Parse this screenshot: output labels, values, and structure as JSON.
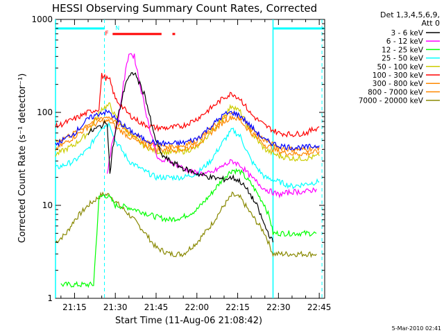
{
  "chart_data": {
    "type": "line",
    "title": "HESSI Observing Summary Count Rates, Corrected",
    "xlabel": "Start Time (11-Aug-06 21:08:42)",
    "ylabel": "Corrected Count Rate (s⁻¹ detector⁻¹)",
    "y_scale": "log",
    "ylim": [
      1,
      1000
    ],
    "xlim": [
      "21:08",
      "22:47"
    ],
    "x_tick_labels": [
      "21:15",
      "21:30",
      "21:45",
      "22:00",
      "22:15",
      "22:30",
      "22:45"
    ],
    "y_tick_labels": [
      "1",
      "10",
      "100",
      "1000"
    ],
    "legend_position": "right",
    "legend_header": [
      "Det 1,3,4,5,6,9,",
      "Att 0"
    ],
    "footer": "5-Mar-2010 02:41",
    "series": [
      {
        "name": "3 - 6 keV",
        "color": "#000000",
        "x": [
          "21:20",
          "21:26",
          "21:27",
          "21:28",
          "21:29",
          "21:31",
          "21:34",
          "21:37",
          "21:41",
          "21:44",
          "21:47",
          "21:50",
          "21:55",
          "22:00",
          "22:05",
          "22:10",
          "22:13",
          "22:16",
          "22:19",
          "22:22",
          "22:25",
          "22:28"
        ],
        "y": [
          60,
          75,
          80,
          22,
          40,
          90,
          220,
          270,
          150,
          60,
          35,
          30,
          25,
          22,
          20,
          19,
          20,
          18,
          14,
          10,
          6,
          4
        ]
      },
      {
        "name": "6 - 12 keV",
        "color": "#ff00ff",
        "x": [
          "21:27",
          "21:29",
          "21:31",
          "21:33",
          "21:35",
          "21:37",
          "21:40",
          "21:43",
          "21:46",
          "21:50",
          "21:55",
          "22:00",
          "22:05",
          "22:10",
          "22:13",
          "22:16",
          "22:20",
          "22:25",
          "22:30",
          "22:35",
          "22:40",
          "22:44"
        ],
        "y": [
          22,
          50,
          80,
          200,
          440,
          400,
          150,
          60,
          30,
          30,
          25,
          22,
          22,
          27,
          30,
          27,
          20,
          15,
          13,
          14,
          14,
          15
        ]
      },
      {
        "name": "12 - 25 keV",
        "color": "#00ff00",
        "x": [
          "21:10",
          "21:22",
          "21:24",
          "21:26",
          "21:28",
          "21:30",
          "21:35",
          "21:40",
          "21:45",
          "21:50",
          "21:55",
          "22:00",
          "22:05",
          "22:10",
          "22:13",
          "22:16",
          "22:20",
          "22:25",
          "22:27",
          "22:28",
          "22:35",
          "22:40",
          "22:44"
        ],
        "y": [
          1.4,
          1.4,
          12,
          13,
          12,
          10,
          9.5,
          8.5,
          7.5,
          7,
          7.5,
          9,
          13,
          20,
          24,
          23,
          17,
          10,
          7,
          5,
          5,
          5,
          5
        ]
      },
      {
        "name": "25 - 50 keV",
        "color": "#00ffff",
        "x": [
          "21:08",
          "21:15",
          "21:20",
          "21:25",
          "21:28",
          "21:30",
          "21:35",
          "21:40",
          "21:45",
          "21:50",
          "21:55",
          "22:00",
          "22:05",
          "22:10",
          "22:13",
          "22:16",
          "22:20",
          "22:25",
          "22:30",
          "22:35",
          "22:40",
          "22:45"
        ],
        "y": [
          25,
          30,
          40,
          70,
          75,
          50,
          30,
          24,
          20,
          20,
          20,
          22,
          30,
          50,
          65,
          55,
          30,
          20,
          18,
          16,
          17,
          18
        ]
      },
      {
        "name": "50 - 100 keV",
        "color": "#cccc00",
        "x": [
          "21:08",
          "21:15",
          "21:20",
          "21:25",
          "21:28",
          "21:30",
          "21:35",
          "21:40",
          "21:45",
          "21:50",
          "21:55",
          "22:00",
          "22:05",
          "22:10",
          "22:13",
          "22:16",
          "22:20",
          "22:25",
          "22:30",
          "22:35",
          "22:40",
          "22:45"
        ],
        "y": [
          35,
          45,
          60,
          110,
          120,
          90,
          60,
          45,
          38,
          37,
          38,
          42,
          60,
          90,
          120,
          100,
          60,
          40,
          34,
          32,
          32,
          34
        ]
      },
      {
        "name": "100 - 300 keV",
        "color": "#ff0000",
        "x": [
          "21:08",
          "21:15",
          "21:20",
          "21:24",
          "21:25",
          "21:28",
          "21:30",
          "21:35",
          "21:40",
          "21:45",
          "21:50",
          "21:55",
          "22:00",
          "22:05",
          "22:10",
          "22:13",
          "22:16",
          "22:20",
          "22:25",
          "22:30",
          "22:35",
          "22:40",
          "22:45"
        ],
        "y": [
          70,
          85,
          100,
          110,
          250,
          220,
          140,
          95,
          75,
          68,
          68,
          72,
          85,
          110,
          145,
          160,
          140,
          95,
          72,
          60,
          58,
          60,
          70
        ]
      },
      {
        "name": "300 - 800 keV",
        "color": "#ff8800",
        "x": [
          "21:08",
          "21:15",
          "21:20",
          "21:25",
          "21:28",
          "21:30",
          "21:35",
          "21:40",
          "21:45",
          "21:50",
          "21:55",
          "22:00",
          "22:05",
          "22:10",
          "22:13",
          "22:16",
          "22:20",
          "22:25",
          "22:30",
          "22:35",
          "22:40",
          "22:45"
        ],
        "y": [
          40,
          55,
          70,
          80,
          80,
          70,
          55,
          45,
          40,
          40,
          40,
          45,
          60,
          80,
          90,
          82,
          60,
          45,
          38,
          36,
          36,
          38
        ]
      },
      {
        "name": "800 - 7000 keV",
        "color": "#ff8800",
        "x": [
          "21:08",
          "21:15",
          "21:20",
          "21:25",
          "21:28",
          "21:30",
          "21:35",
          "21:40",
          "21:45",
          "21:50",
          "21:55",
          "22:00",
          "22:05",
          "22:10",
          "22:13",
          "22:16",
          "22:20",
          "22:25",
          "22:30",
          "22:35",
          "22:40",
          "22:45"
        ],
        "y": [
          48,
          60,
          75,
          88,
          90,
          78,
          62,
          50,
          44,
          43,
          44,
          50,
          65,
          88,
          98,
          90,
          66,
          50,
          42,
          40,
          40,
          42
        ]
      },
      {
        "name": "7000 - 20000 keV",
        "color": "#888800",
        "x": [
          "21:08",
          "21:12",
          "21:15",
          "21:20",
          "21:25",
          "21:28",
          "21:30",
          "21:35",
          "21:40",
          "21:45",
          "21:50",
          "21:55",
          "22:00",
          "22:05",
          "22:10",
          "22:13",
          "22:16",
          "22:20",
          "22:25",
          "22:28",
          "22:32",
          "22:36",
          "22:40",
          "22:44"
        ],
        "y": [
          4,
          5,
          7,
          10,
          13,
          13,
          11,
          8,
          5.5,
          3.5,
          3,
          3,
          4,
          6,
          10,
          13,
          12,
          8,
          5,
          3,
          3,
          3,
          3,
          3
        ]
      }
    ],
    "blue_band": {
      "name": "",
      "color": "#0000ff",
      "x": [
        "21:08",
        "21:15",
        "21:20",
        "21:25",
        "21:28",
        "21:30",
        "21:35",
        "21:40",
        "21:45",
        "21:50",
        "21:55",
        "22:00",
        "22:05",
        "22:10",
        "22:13",
        "22:16",
        "22:20",
        "22:25",
        "22:30",
        "22:35",
        "22:40",
        "22:45"
      ],
      "y": [
        45,
        60,
        85,
        100,
        100,
        85,
        65,
        52,
        47,
        46,
        47,
        52,
        70,
        95,
        100,
        92,
        70,
        50,
        44,
        42,
        42,
        44
      ]
    },
    "annotations": {
      "night_bars": [
        {
          "label": "",
          "start": "21:08",
          "end": "21:26",
          "color": "#00ffff"
        },
        {
          "label": "",
          "start": "22:28",
          "end": "22:47",
          "color": "#00ffff"
        }
      ],
      "n_marker": {
        "label": "N",
        "time": "21:29",
        "color": "#00ffff"
      },
      "f_marker": {
        "label": "F",
        "time": "21:28",
        "color": "#ff0000"
      },
      "flare_bars": [
        {
          "start": "21:29",
          "end": "21:47",
          "color": "#ff0000"
        },
        {
          "start": "21:51",
          "end": "21:52",
          "color": "#ff0000"
        }
      ],
      "vertical_solid": [
        "21:08",
        "22:28"
      ],
      "vertical_dashed": [
        "21:26",
        "22:46"
      ]
    }
  }
}
